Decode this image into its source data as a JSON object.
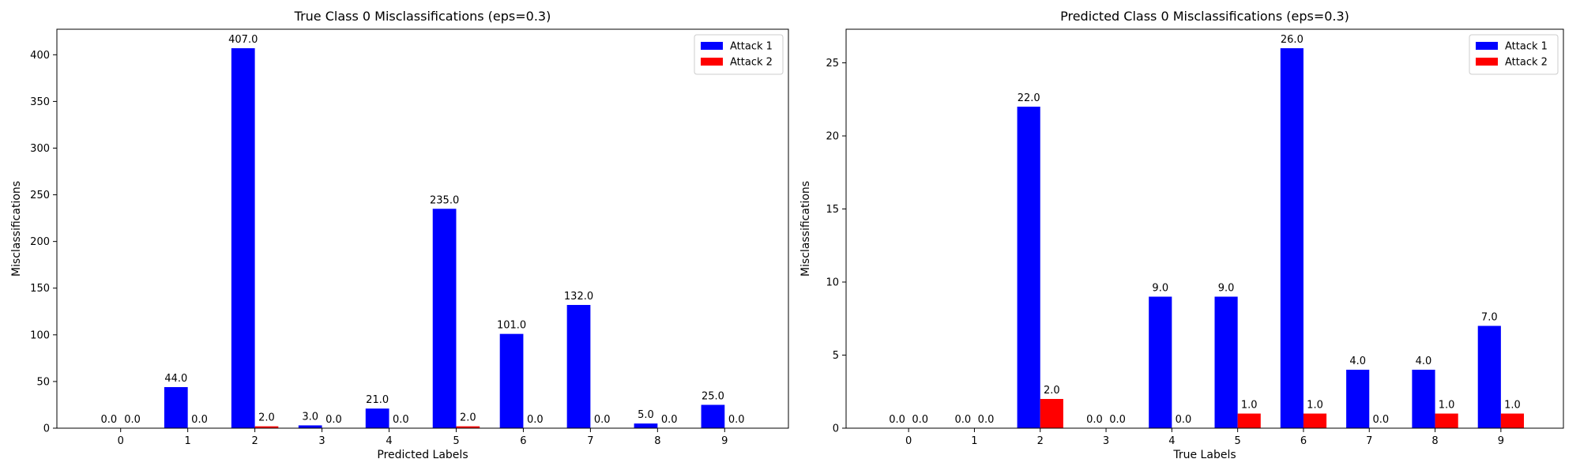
{
  "chart_data": [
    {
      "type": "bar",
      "title": "True Class 0 Misclassifications (eps=0.3)",
      "xlabel": "Predicted Labels",
      "ylabel": "Misclassifications",
      "categories": [
        "0",
        "1",
        "2",
        "3",
        "4",
        "5",
        "6",
        "7",
        "8",
        "9"
      ],
      "series": [
        {
          "name": "Attack 1",
          "color": "#0000ff",
          "values": [
            0,
            44,
            407,
            3,
            21,
            235,
            101,
            132,
            5,
            25
          ]
        },
        {
          "name": "Attack 2",
          "color": "#ff0000",
          "values": [
            0,
            0,
            2,
            0,
            0,
            2,
            0,
            0,
            0,
            0
          ]
        }
      ],
      "ylim": [
        0,
        427.35
      ],
      "yticks": [
        0,
        50,
        100,
        150,
        200,
        250,
        300,
        350,
        400
      ],
      "bar_label_format": "one-decimal",
      "legend_placement": "upper right",
      "grid": false
    },
    {
      "type": "bar",
      "title": "Predicted Class 0 Misclassifications (eps=0.3)",
      "xlabel": "True Labels",
      "ylabel": "Misclassifications",
      "categories": [
        "0",
        "1",
        "2",
        "3",
        "4",
        "5",
        "6",
        "7",
        "8",
        "9"
      ],
      "series": [
        {
          "name": "Attack 1",
          "color": "#0000ff",
          "values": [
            0,
            0,
            22,
            0,
            9,
            9,
            26,
            4,
            4,
            7
          ]
        },
        {
          "name": "Attack 2",
          "color": "#ff0000",
          "values": [
            0,
            0,
            2,
            0,
            0,
            1,
            1,
            0,
            1,
            1
          ]
        }
      ],
      "ylim": [
        0,
        27.3
      ],
      "yticks": [
        0,
        5,
        10,
        15,
        20,
        25
      ],
      "bar_label_format": "one-decimal",
      "legend_placement": "upper right",
      "grid": false
    }
  ]
}
